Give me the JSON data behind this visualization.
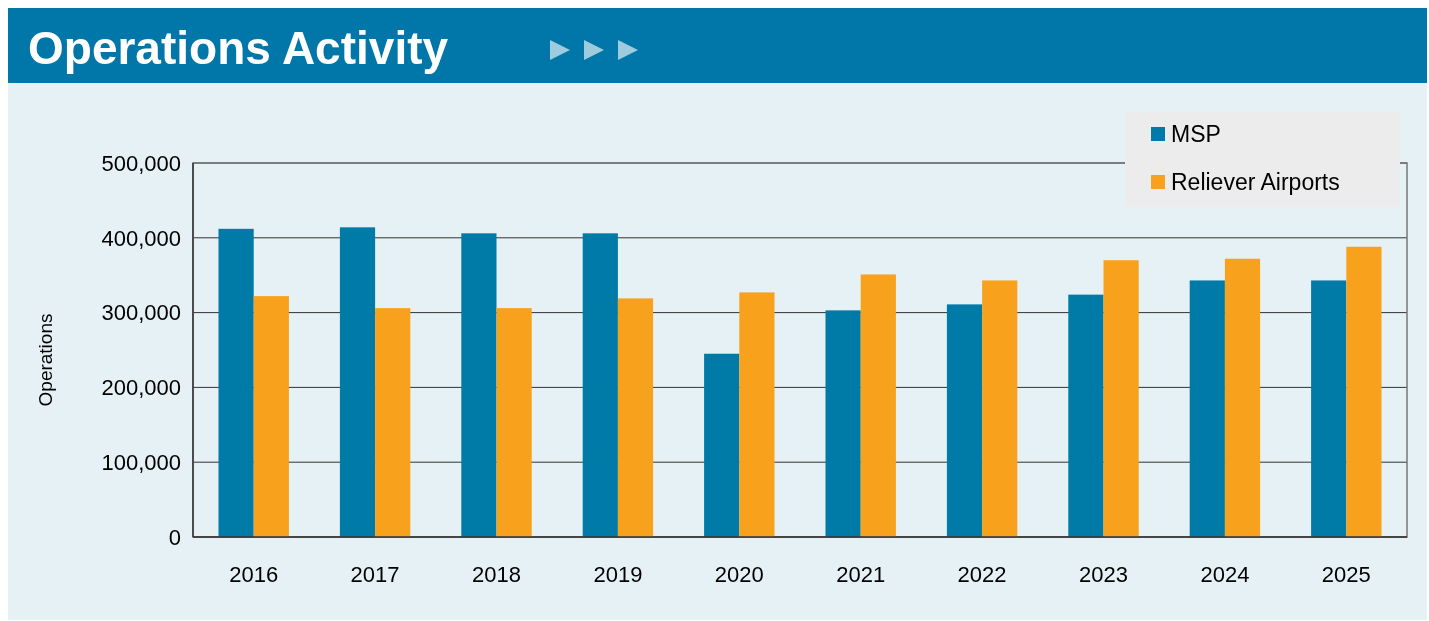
{
  "chart_data": {
    "type": "bar",
    "title": "Operations Activity",
    "ylabel": "Operations",
    "categories": [
      "2016",
      "2017",
      "2018",
      "2019",
      "2020",
      "2021",
      "2022",
      "2023",
      "2024",
      "2025"
    ],
    "series": [
      {
        "name": "MSP",
        "color": "#007ba7",
        "values": [
          412000,
          414000,
          406000,
          406000,
          245000,
          303000,
          311000,
          324000,
          343000,
          343000
        ]
      },
      {
        "name": "Reliever Airports",
        "color": "#f7a11d",
        "values": [
          322000,
          306000,
          306000,
          319000,
          327000,
          351000,
          343000,
          370000,
          372000,
          388000
        ]
      }
    ],
    "ylim": [
      0,
      500000
    ],
    "yticks": [
      {
        "value": 0,
        "label": "0"
      },
      {
        "value": 100000,
        "label": "100,000"
      },
      {
        "value": 200000,
        "label": "200,000"
      },
      {
        "value": 300000,
        "label": "300,000"
      },
      {
        "value": 400000,
        "label": "400,000"
      },
      {
        "value": 500000,
        "label": "500,000"
      }
    ],
    "grid": "y",
    "legend": "top right"
  }
}
